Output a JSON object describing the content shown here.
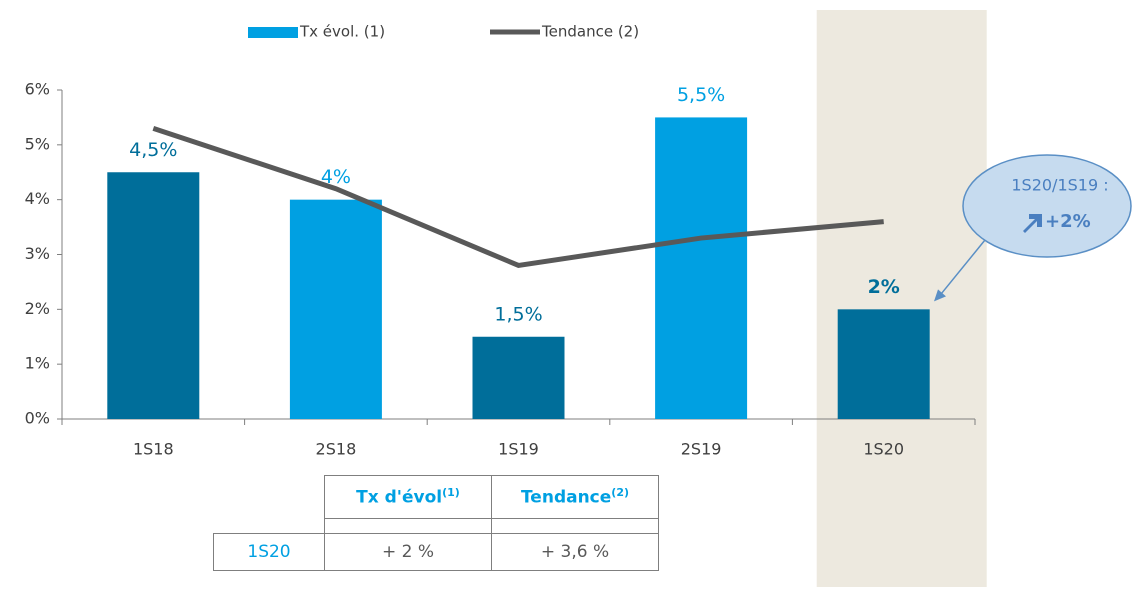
{
  "chart_data": {
    "type": "bar_line",
    "categories": [
      "1S18",
      "2S18",
      "1S19",
      "2S19",
      "1S20"
    ],
    "series": [
      {
        "name": "Tx évol. (1)",
        "type": "bar",
        "color": "#00a0e2",
        "colors": [
          "#006e9a",
          "#00a0e2",
          "#006e9a",
          "#00a0e2",
          "#006e9a"
        ],
        "values": [
          4.5,
          4,
          1.5,
          5.5,
          2
        ],
        "value_labels": [
          "4,5%",
          "4%",
          "1,5%",
          "5,5%",
          "2%"
        ]
      },
      {
        "name": "Tendance (2)",
        "type": "line",
        "color": "#595959",
        "values": [
          5.3,
          4.2,
          2.8,
          3.3,
          3.6
        ]
      }
    ],
    "ylim": [
      0,
      6
    ],
    "yticks": [
      {
        "value": 0,
        "label": "0%"
      },
      {
        "value": 1,
        "label": "1%"
      },
      {
        "value": 2,
        "label": "2%"
      },
      {
        "value": 3,
        "label": "3%"
      },
      {
        "value": 4,
        "label": "4%"
      },
      {
        "value": 5,
        "label": "5%"
      },
      {
        "value": 6,
        "label": "6%"
      }
    ],
    "grid": false,
    "legend": "top",
    "highlight_index": 4,
    "highlight_color": "#ede9df",
    "annotation": {
      "line1": "1S20/1S19 :",
      "text": "+2%"
    }
  },
  "table": {
    "columns": [
      {
        "label": "Tx d'évol",
        "sup": "(1)"
      },
      {
        "label": "Tendance",
        "sup": "(2)"
      }
    ],
    "rows": [
      {
        "label": "1S20",
        "cells": [
          "+ 2 %",
          "+ 3,6 %"
        ]
      }
    ]
  }
}
